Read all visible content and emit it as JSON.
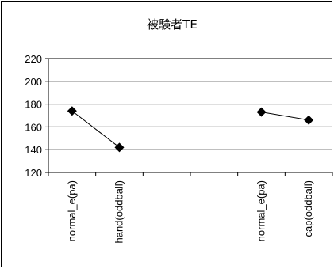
{
  "chart_data": {
    "type": "line",
    "title": "被験者TE",
    "xlabel": "",
    "ylabel": "",
    "ylim": [
      120,
      220
    ],
    "yticks": [
      120,
      140,
      160,
      180,
      200,
      220
    ],
    "grid": true,
    "legend": "none",
    "categories": [
      "normal_e(pa)",
      "hand(oddball)",
      "",
      "",
      "normal_e(pa)",
      "cap(oddball)"
    ],
    "series": [
      {
        "values": [
          174,
          142,
          null,
          null,
          173,
          166
        ],
        "color": "#000000",
        "marker": "diamond"
      }
    ]
  }
}
